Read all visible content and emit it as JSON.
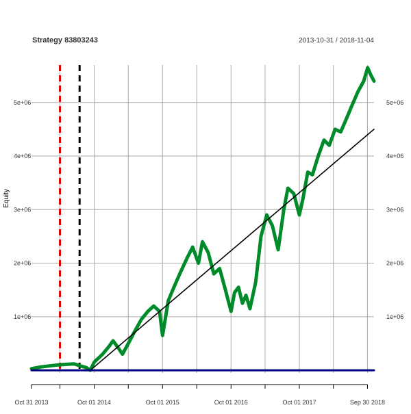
{
  "chart_data": {
    "type": "line",
    "title": "Strategy 83803243",
    "date_range": "2013-10-31 / 2018-11-04",
    "ylabel": "Equity",
    "xlabel": "",
    "x_tick_labels": [
      "Oct 31 2013",
      "Oct 01 2014",
      "Oct 01 2015",
      "Oct 01 2016",
      "Oct 01 2017",
      "Sep 30 2018"
    ],
    "y_tick_labels": [
      "1e+06",
      "2e+06",
      "3e+06",
      "4e+06",
      "5e+06"
    ],
    "y_ticks": [
      1000000,
      2000000,
      3000000,
      4000000,
      5000000
    ],
    "xlim": [
      "2013-10-31",
      "2018-11-04"
    ],
    "ylim": [
      -50000,
      5700000
    ],
    "grid": true,
    "colors": {
      "equity": "#008b2a",
      "trend": "#000000",
      "baseline": "#000080",
      "red_marker": "#dd0000",
      "black_marker": "#000000",
      "grid": "#aaaaaa"
    },
    "vertical_markers": [
      {
        "date": "2014-04-01",
        "style": "dashed",
        "color": "#dd0000"
      },
      {
        "date": "2014-07-15",
        "style": "dashed",
        "color": "#000000"
      }
    ],
    "series": [
      {
        "type": "line",
        "x": [
          "2013-10-31",
          "2013-12-15",
          "2014-02-01",
          "2014-03-20",
          "2014-05-01",
          "2014-06-15",
          "2014-07-20",
          "2014-08-20",
          "2014-09-10",
          "2014-10-01",
          "2014-11-15",
          "2014-12-20",
          "2015-01-10",
          "2015-02-10",
          "2015-03-01",
          "2015-04-01",
          "2015-05-01",
          "2015-06-10",
          "2015-07-15",
          "2015-08-15",
          "2015-09-15",
          "2015-10-01",
          "2015-11-01",
          "2015-12-01",
          "2016-01-01",
          "2016-02-10",
          "2016-03-10",
          "2016-04-10",
          "2016-05-01",
          "2016-06-01",
          "2016-07-01",
          "2016-08-01",
          "2016-09-01",
          "2016-10-01",
          "2016-10-20",
          "2016-11-10",
          "2016-12-01",
          "2016-12-20",
          "2017-01-10",
          "2017-02-10",
          "2017-03-10",
          "2017-04-10",
          "2017-05-10",
          "2017-06-10",
          "2017-07-10",
          "2017-08-01",
          "2017-09-01",
          "2017-10-01",
          "2017-10-20",
          "2017-11-15",
          "2017-12-10",
          "2018-01-10",
          "2018-02-10",
          "2018-03-10",
          "2018-04-10",
          "2018-05-10",
          "2018-06-10",
          "2018-07-10",
          "2018-08-10",
          "2018-09-10",
          "2018-10-01",
          "2018-10-20",
          "2018-11-04"
        ],
        "y": [
          30000,
          60000,
          80000,
          100000,
          110000,
          120000,
          80000,
          50000,
          0,
          150000,
          300000,
          450000,
          550000,
          400000,
          300000,
          500000,
          700000,
          950000,
          1100000,
          1200000,
          1100000,
          650000,
          1300000,
          1550000,
          1800000,
          2100000,
          2300000,
          2000000,
          2400000,
          2200000,
          1800000,
          1900000,
          1500000,
          1100000,
          1450000,
          1550000,
          1250000,
          1400000,
          1150000,
          1650000,
          2500000,
          2900000,
          2700000,
          2250000,
          3000000,
          3400000,
          3300000,
          2900000,
          3200000,
          3700000,
          3650000,
          4000000,
          4300000,
          4200000,
          4500000,
          4450000,
          4700000,
          4950000,
          5200000,
          5400000,
          5650000,
          5500000,
          5400000
        ]
      },
      {
        "type": "line",
        "x": [
          "2014-09-10",
          "2018-11-04"
        ],
        "y": [
          0,
          4500000
        ]
      },
      {
        "type": "line",
        "x": [
          "2013-10-31",
          "2018-11-04"
        ],
        "y": [
          0,
          0
        ]
      }
    ]
  }
}
